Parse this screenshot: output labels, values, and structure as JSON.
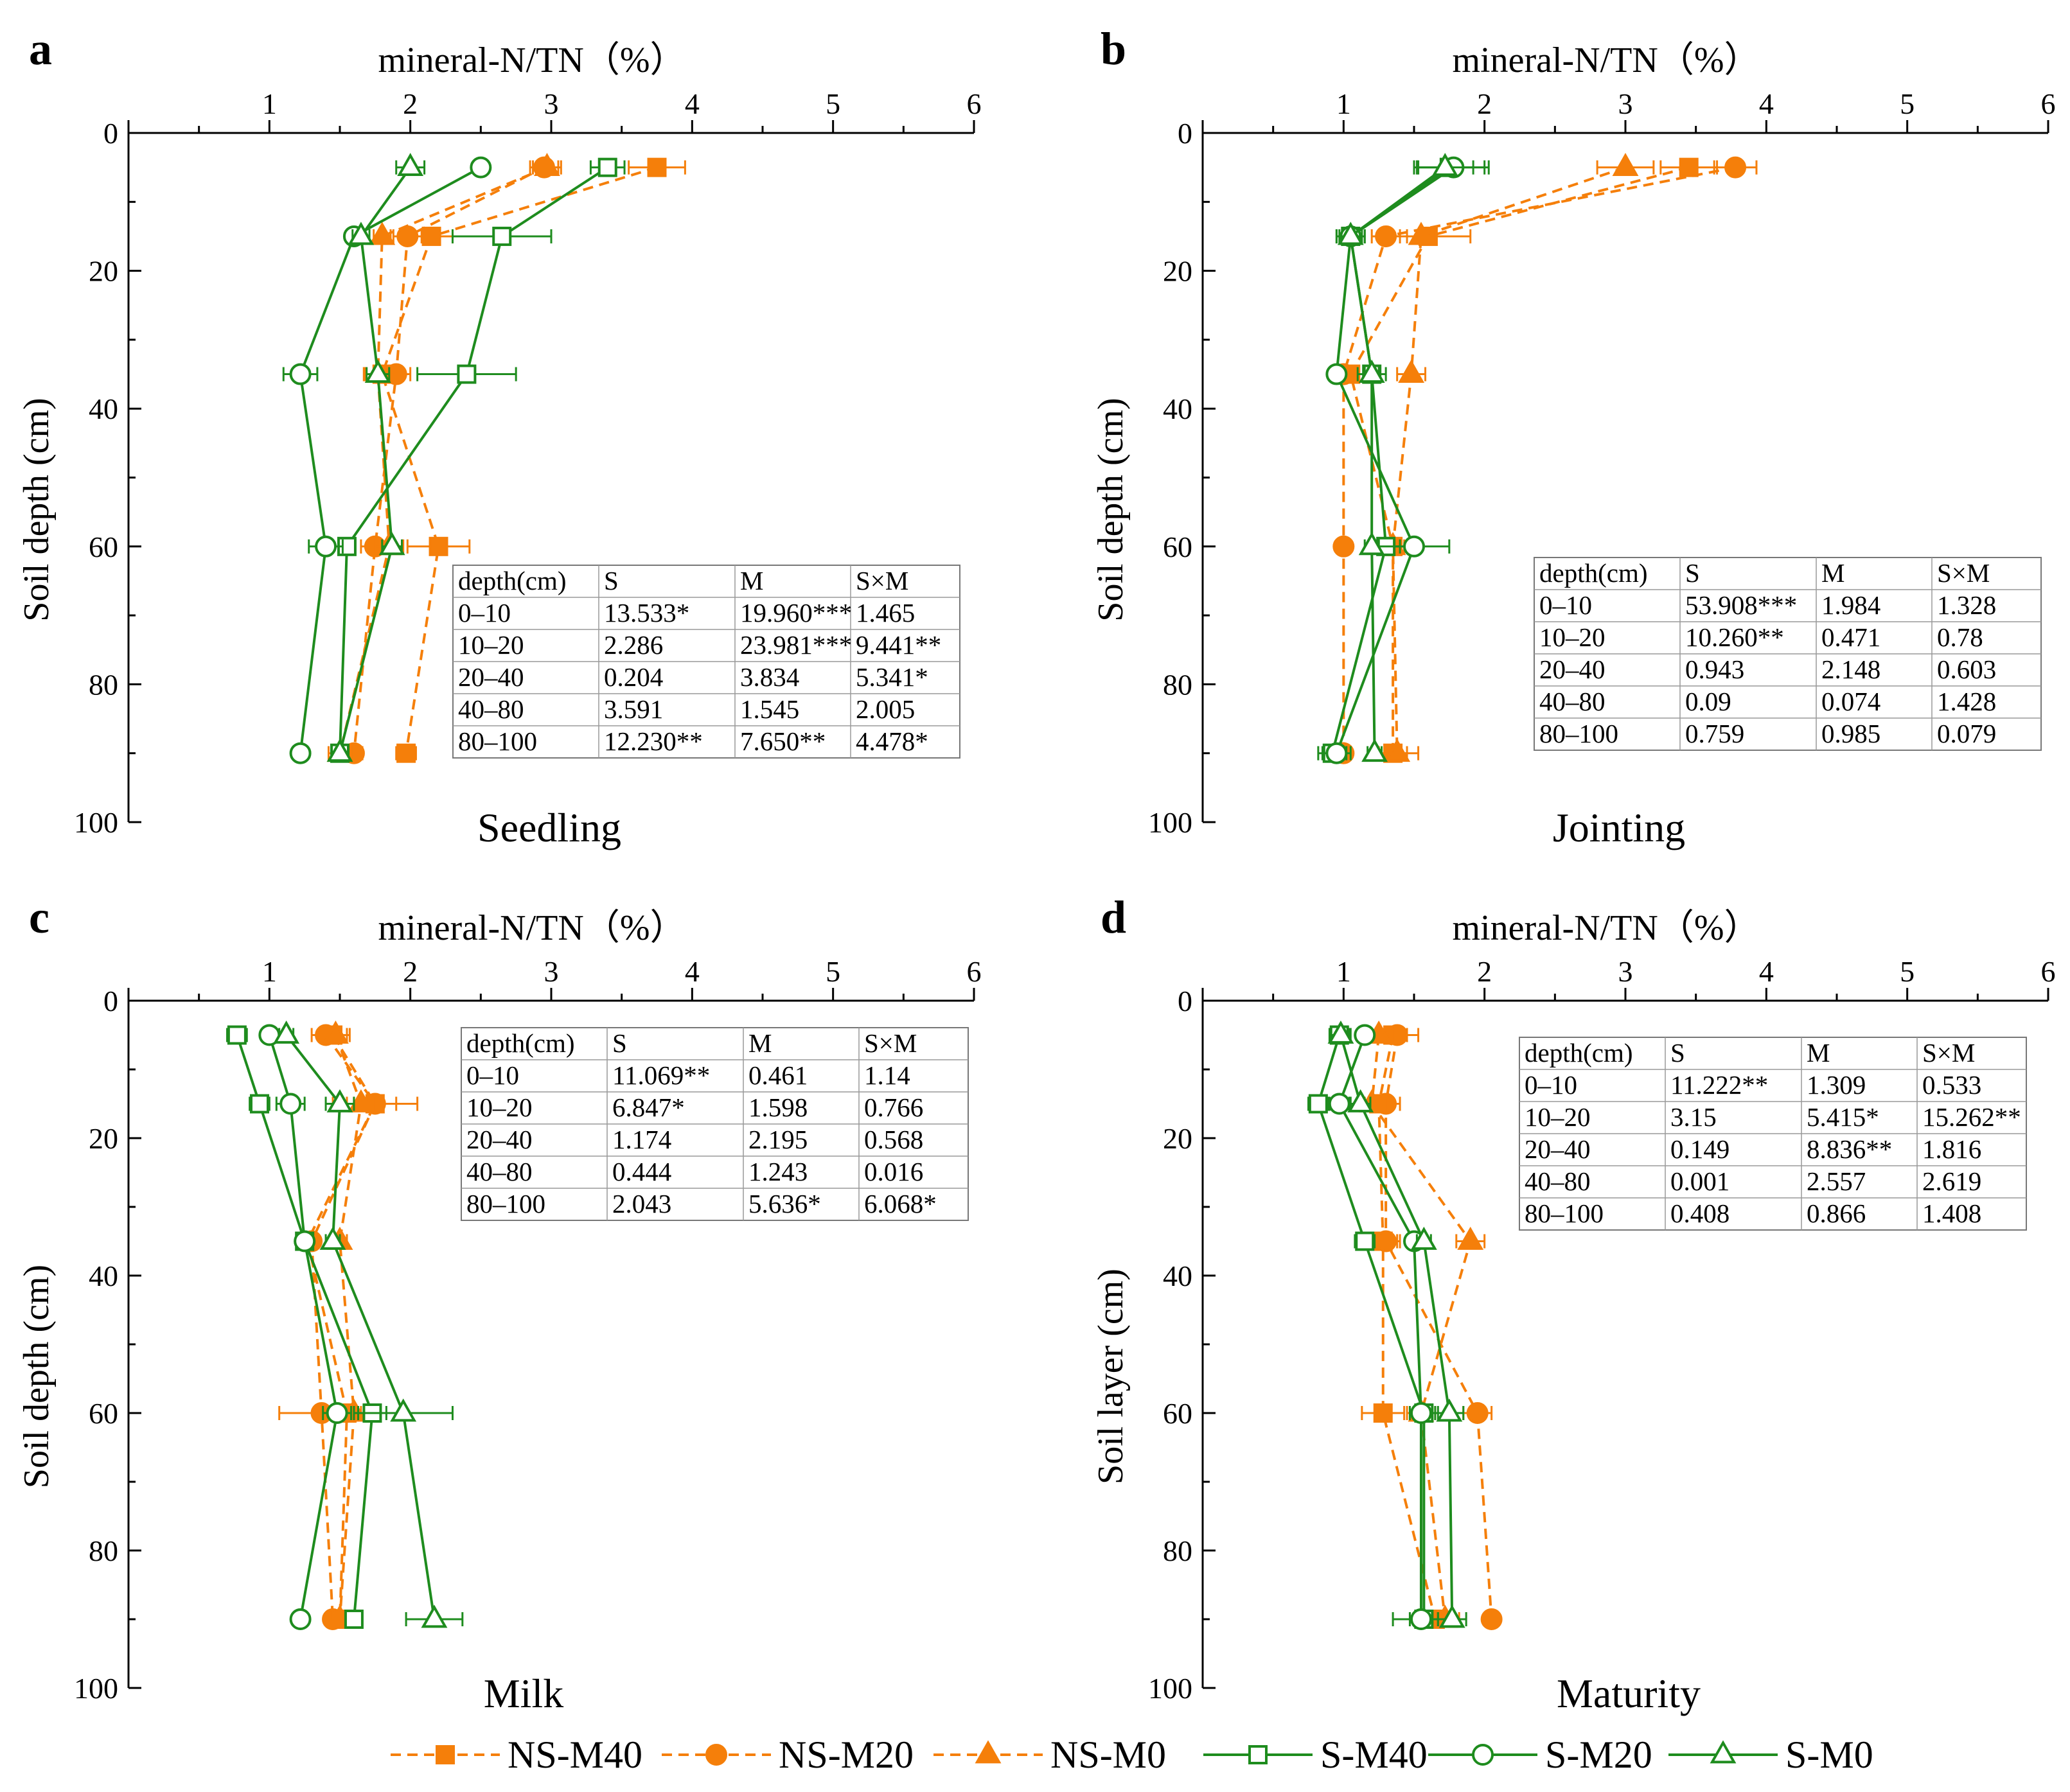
{
  "chart_data": [
    {
      "type": "line",
      "panel": "a",
      "stage": "Seedling",
      "title": "mineral-N/TN（%）",
      "xlabel": "mineral-N/TN（%）",
      "ylabel": "Soil depth (cm)",
      "xlim": [
        0,
        6
      ],
      "ylim": [
        0,
        100
      ],
      "x_ticks": [
        "1",
        "2",
        "3",
        "4",
        "5",
        "6"
      ],
      "y_ticks": [
        "0",
        "20",
        "40",
        "60",
        "80",
        "100"
      ],
      "depths": [
        5,
        15,
        35,
        60,
        90
      ],
      "series": [
        {
          "name": "NS-M40",
          "values": [
            3.75,
            2.15,
            1.8,
            2.2,
            1.97
          ],
          "errors": [
            0.2,
            0.15,
            0.12,
            0.22,
            0.07
          ]
        },
        {
          "name": "NS-M20",
          "values": [
            2.95,
            1.98,
            1.9,
            1.75,
            1.6
          ],
          "errors": [
            0.1,
            0.1,
            0.1,
            0.1,
            0.06
          ]
        },
        {
          "name": "NS-M0",
          "values": [
            2.97,
            1.8,
            1.77,
            1.85,
            1.5
          ],
          "errors": [
            0.1,
            0.06,
            0.1,
            0.1,
            0.08
          ]
        },
        {
          "name": "S-M40",
          "values": [
            3.4,
            2.65,
            2.4,
            1.55,
            1.5
          ],
          "errors": [
            0.12,
            0.35,
            0.35,
            0.06,
            0.06
          ]
        },
        {
          "name": "S-M20",
          "values": [
            2.5,
            1.6,
            1.22,
            1.4,
            1.22
          ],
          "errors": [
            0.05,
            0.05,
            0.12,
            0.12,
            0.04
          ]
        },
        {
          "name": "S-M0",
          "values": [
            2.0,
            1.65,
            1.77,
            1.87,
            1.5
          ],
          "errors": [
            0.1,
            0.06,
            0.08,
            0.07,
            0.06
          ]
        }
      ],
      "anova_table": {
        "header": [
          "depth(cm)",
          "S",
          "M",
          "S×M"
        ],
        "rows": [
          [
            "0–10",
            "13.533*",
            "19.960***",
            "1.465"
          ],
          [
            "10–20",
            "2.286",
            "23.981***",
            "9.441**"
          ],
          [
            "20–40",
            "0.204",
            "3.834",
            "5.341*"
          ],
          [
            "40–80",
            "3.591",
            "1.545",
            "2.005"
          ],
          [
            "80–100",
            "12.230**",
            "7.650**",
            "4.478*"
          ]
        ]
      }
    },
    {
      "type": "line",
      "panel": "b",
      "stage": "Jointing",
      "title": "mineral-N/TN（%）",
      "xlabel": "mineral-N/TN（%）",
      "ylabel": "Soil depth (cm)",
      "xlim": [
        0,
        6
      ],
      "ylim": [
        0,
        100
      ],
      "x_ticks": [
        "1",
        "2",
        "3",
        "4",
        "5",
        "6"
      ],
      "y_ticks": [
        "0",
        "20",
        "40",
        "60",
        "80",
        "100"
      ],
      "depths": [
        5,
        15,
        35,
        60,
        90
      ],
      "series": [
        {
          "name": "NS-M40",
          "values": [
            3.45,
            1.6,
            1.05,
            1.35,
            1.35
          ],
          "errors": [
            0.2,
            0.3,
            0.1,
            0.08,
            0.1
          ]
        },
        {
          "name": "NS-M20",
          "values": [
            3.78,
            1.3,
            1.0,
            1.0,
            1.0
          ],
          "errors": [
            0.15,
            0.1,
            0.1,
            0.05,
            0.05
          ]
        },
        {
          "name": "NS-M0",
          "values": [
            3.0,
            1.55,
            1.48,
            1.35,
            1.38
          ],
          "errors": [
            0.2,
            0.1,
            0.1,
            0.1,
            0.15
          ]
        },
        {
          "name": "S-M40",
          "values": [
            1.75,
            1.05,
            1.2,
            1.3,
            0.92
          ],
          "errors": [
            0.25,
            0.1,
            0.1,
            0.1,
            0.1
          ]
        },
        {
          "name": "S-M20",
          "values": [
            1.78,
            1.05,
            0.95,
            1.5,
            0.95
          ],
          "errors": [
            0.25,
            0.1,
            0.05,
            0.25,
            0.1
          ]
        },
        {
          "name": "S-M0",
          "values": [
            1.72,
            1.05,
            1.2,
            1.2,
            1.22
          ],
          "errors": [
            0.2,
            0.08,
            0.05,
            0.05,
            0.05
          ]
        }
      ],
      "anova_table": {
        "header": [
          "depth(cm)",
          "S",
          "M",
          "S×M"
        ],
        "rows": [
          [
            "0–10",
            "53.908***",
            "1.984",
            "1.328"
          ],
          [
            "10–20",
            "10.260**",
            "0.471",
            "0.78"
          ],
          [
            "20–40",
            "0.943",
            "2.148",
            "0.603"
          ],
          [
            "40–80",
            "0.09",
            "0.074",
            "1.428"
          ],
          [
            "80–100",
            "0.759",
            "0.985",
            "0.079"
          ]
        ]
      }
    },
    {
      "type": "line",
      "panel": "c",
      "stage": "Milk",
      "title": "mineral-N/TN（%）",
      "xlabel": "mineral-N/TN（%）",
      "ylabel": "Soil depth (cm)",
      "xlim": [
        0,
        6
      ],
      "ylim": [
        0,
        100
      ],
      "x_ticks": [
        "1",
        "2",
        "3",
        "4",
        "5",
        "6"
      ],
      "y_ticks": [
        "0",
        "20",
        "40",
        "60",
        "80",
        "100"
      ],
      "depths": [
        5,
        15,
        35,
        60,
        90
      ],
      "series": [
        {
          "name": "NS-M40",
          "values": [
            1.45,
            1.75,
            1.27,
            1.55,
            1.5
          ],
          "errors": [
            0.1,
            0.15,
            0.05,
            0.1,
            0.1
          ]
        },
        {
          "name": "NS-M20",
          "values": [
            1.4,
            1.75,
            1.3,
            1.37,
            1.45
          ],
          "errors": [
            0.1,
            0.3,
            0.05,
            0.3,
            0.05
          ]
        },
        {
          "name": "NS-M0",
          "values": [
            1.47,
            1.65,
            1.5,
            1.6,
            1.5
          ],
          "errors": [
            0.1,
            0.1,
            0.05,
            0.1,
            0.05
          ]
        },
        {
          "name": "S-M40",
          "values": [
            0.77,
            0.93,
            1.25,
            1.73,
            1.6
          ],
          "errors": [
            0.07,
            0.07,
            0.05,
            0.1,
            0.05
          ]
        },
        {
          "name": "S-M20",
          "values": [
            1.0,
            1.15,
            1.25,
            1.48,
            1.22
          ],
          "errors": [
            0.05,
            0.1,
            0.05,
            0.1,
            0.05
          ]
        },
        {
          "name": "S-M0",
          "values": [
            1.12,
            1.5,
            1.45,
            1.95,
            2.17
          ],
          "errors": [
            0.05,
            0.1,
            0.05,
            0.35,
            0.2
          ]
        }
      ],
      "anova_table": {
        "header": [
          "depth(cm)",
          "S",
          "M",
          "S×M"
        ],
        "rows": [
          [
            "0–10",
            "11.069**",
            "0.461",
            "1.14"
          ],
          [
            "10–20",
            "6.847*",
            "1.598",
            "0.766"
          ],
          [
            "20–40",
            "1.174",
            "2.195",
            "0.568"
          ],
          [
            "40–80",
            "0.444",
            "1.243",
            "0.016"
          ],
          [
            "80–100",
            "2.043",
            "5.636*",
            "6.068*"
          ]
        ]
      }
    },
    {
      "type": "line",
      "panel": "d",
      "stage": "Maturity",
      "title": "mineral-N/TN（%）",
      "xlabel": "mineral-N/TN（%）",
      "ylabel": "Soil layer (cm)",
      "xlim": [
        0,
        6
      ],
      "ylim": [
        0,
        100
      ],
      "x_ticks": [
        "1",
        "2",
        "3",
        "4",
        "5",
        "6"
      ],
      "y_ticks": [
        "0",
        "20",
        "40",
        "60",
        "80",
        "100"
      ],
      "depths": [
        5,
        15,
        35,
        60,
        90
      ],
      "series": [
        {
          "name": "NS-M40",
          "values": [
            1.35,
            1.25,
            1.28,
            1.28,
            1.65
          ],
          "errors": [
            0.1,
            0.1,
            0.1,
            0.15,
            0.1
          ]
        },
        {
          "name": "NS-M20",
          "values": [
            1.38,
            1.3,
            1.3,
            1.95,
            2.05
          ],
          "errors": [
            0.15,
            0.1,
            0.1,
            0.1,
            0.05
          ]
        },
        {
          "name": "NS-M0",
          "values": [
            1.25,
            1.2,
            1.9,
            1.55,
            1.72
          ],
          "errors": [
            0.1,
            0.1,
            0.1,
            0.1,
            0.1
          ]
        },
        {
          "name": "S-M40",
          "values": [
            0.97,
            0.82,
            1.15,
            1.57,
            1.57
          ],
          "errors": [
            0.07,
            0.07,
            0.07,
            0.1,
            0.1
          ]
        },
        {
          "name": "S-M20",
          "values": [
            1.15,
            0.97,
            1.5,
            1.55,
            1.55
          ],
          "errors": [
            0.05,
            0.07,
            0.05,
            0.05,
            0.2
          ]
        },
        {
          "name": "S-M0",
          "values": [
            0.98,
            1.12,
            1.57,
            1.75,
            1.77
          ],
          "errors": [
            0.07,
            0.07,
            0.05,
            0.1,
            0.1
          ]
        }
      ],
      "anova_table": {
        "header": [
          "depth(cm)",
          "S",
          "M",
          "S×M"
        ],
        "rows": [
          [
            "0–10",
            "11.222**",
            "1.309",
            "0.533"
          ],
          [
            "10–20",
            "3.15",
            "5.415*",
            "15.262**"
          ],
          [
            "20–40",
            "0.149",
            "8.836**",
            "1.816"
          ],
          [
            "40–80",
            "0.001",
            "2.557",
            "2.619"
          ],
          [
            "80–100",
            "0.408",
            "0.866",
            "1.408"
          ]
        ]
      }
    }
  ],
  "legend": [
    {
      "name": "NS-M40",
      "color": "#F57F0A",
      "dash": true,
      "marker": "square",
      "filled": true
    },
    {
      "name": "NS-M20",
      "color": "#F57F0A",
      "dash": true,
      "marker": "circle",
      "filled": true
    },
    {
      "name": "NS-M0",
      "color": "#F57F0A",
      "dash": true,
      "marker": "triangle",
      "filled": true
    },
    {
      "name": "S-M40",
      "color": "#1E8C1E",
      "dash": false,
      "marker": "square",
      "filled": false
    },
    {
      "name": "S-M20",
      "color": "#1E8C1E",
      "dash": false,
      "marker": "circle",
      "filled": false
    },
    {
      "name": "S-M0",
      "color": "#1E8C1E",
      "dash": false,
      "marker": "triangle",
      "filled": false
    }
  ]
}
